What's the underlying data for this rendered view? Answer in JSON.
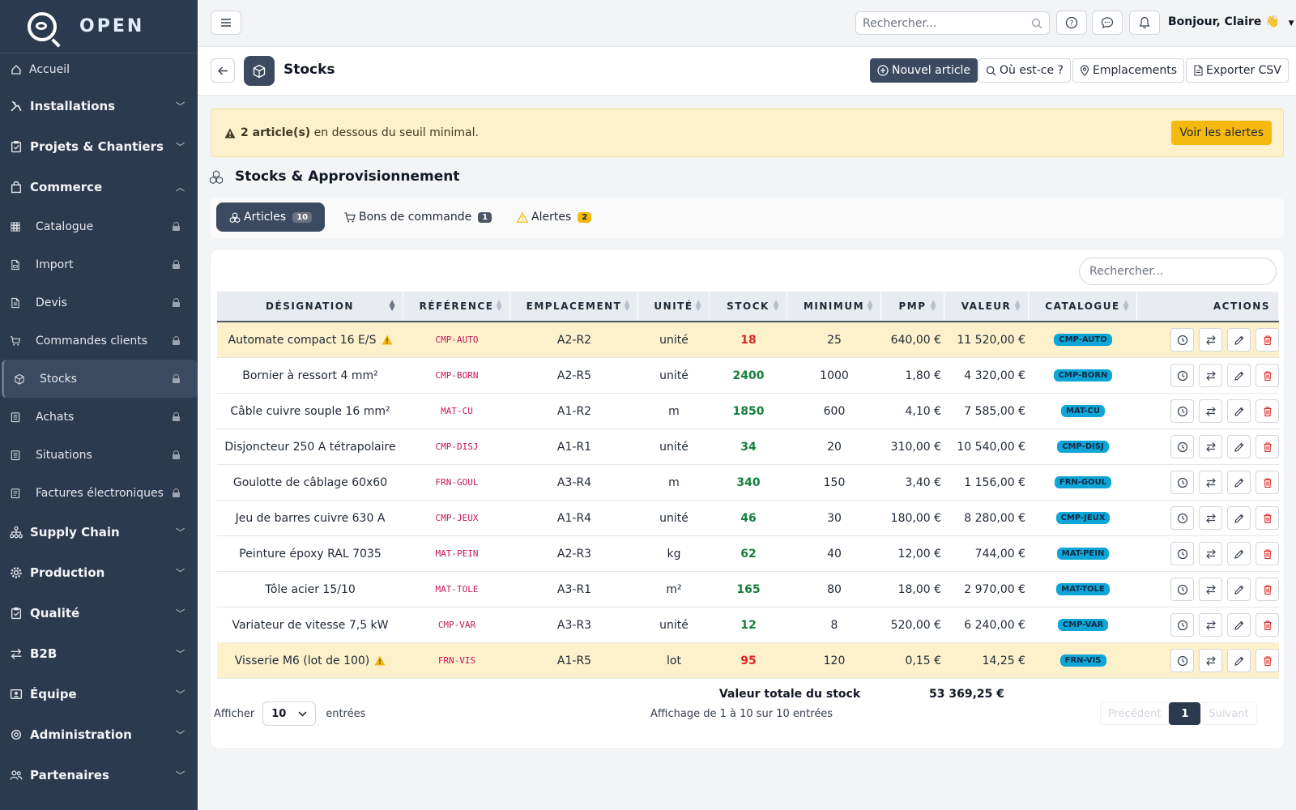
{
  "brand": {
    "name": "OPEN"
  },
  "sidebar": {
    "home": "Accueil",
    "groups_top": [
      {
        "label": "Installations",
        "icon": "tools-icon"
      },
      {
        "label": "Projets & Chantiers",
        "icon": "clipboard-icon"
      },
      {
        "label": "Commerce",
        "icon": "shopping-bag-icon",
        "expanded": true
      }
    ],
    "commerce_items": [
      {
        "label": "Catalogue",
        "icon": "grid-icon"
      },
      {
        "label": "Import",
        "icon": "file-icon"
      },
      {
        "label": "Devis",
        "icon": "file-text-icon"
      },
      {
        "label": "Commandes clients",
        "icon": "cart-icon"
      },
      {
        "label": "Stocks",
        "icon": "cube-icon",
        "active": true
      },
      {
        "label": "Achats",
        "icon": "receipt-icon"
      },
      {
        "label": "Situations",
        "icon": "receipt-icon"
      },
      {
        "label": "Factures électroniques",
        "icon": "invoice-icon"
      }
    ],
    "groups_bottom": [
      {
        "label": "Supply Chain",
        "icon": "network-icon"
      },
      {
        "label": "Production",
        "icon": "gear-icon"
      },
      {
        "label": "Qualité",
        "icon": "clipboard-check-icon"
      },
      {
        "label": "B2B",
        "icon": "arrows-icon"
      },
      {
        "label": "Équipe",
        "icon": "id-card-icon"
      },
      {
        "label": "Administration",
        "icon": "settings-icon"
      },
      {
        "label": "Partenaires",
        "icon": "users-icon"
      }
    ]
  },
  "topbar": {
    "search_placeholder": "Rechercher...",
    "greeting": "Bonjour, Claire 👋"
  },
  "header": {
    "title": "Stocks",
    "buttons": {
      "new": "Nouvel article",
      "where": "Où est-ce ?",
      "locations": "Emplacements",
      "export": "Exporter CSV"
    }
  },
  "alert": {
    "count_text": "2 article(s)",
    "rest_text": "en dessous du seuil minimal.",
    "button": "Voir les alertes"
  },
  "section": {
    "title": "Stocks & Approvisionnement"
  },
  "tabs": [
    {
      "label": "Articles",
      "count": "10"
    },
    {
      "label": "Bons de commande",
      "count": "1"
    },
    {
      "label": "Alertes",
      "count": "2"
    }
  ],
  "table": {
    "search_placeholder": "Rechercher...",
    "columns": [
      "DÉSIGNATION",
      "RÉFÉRENCE",
      "EMPLACEMENT",
      "UNITÉ",
      "STOCK",
      "MINIMUM",
      "PMP",
      "VALEUR",
      "CATALOGUE",
      "ACTIONS"
    ],
    "rows": [
      {
        "designation": "Automate compact 16 E/S",
        "ref": "CMP-AUTO",
        "emplacement": "A2-R2",
        "unite": "unité",
        "stock": "18",
        "minimum": "25",
        "pmp": "640,00 €",
        "valeur": "11 520,00 €",
        "catalogue": "CMP-AUTO",
        "low": true
      },
      {
        "designation": "Bornier à ressort 4 mm²",
        "ref": "CMP-BORN",
        "emplacement": "A2-R5",
        "unite": "unité",
        "stock": "2400",
        "minimum": "1000",
        "pmp": "1,80 €",
        "valeur": "4 320,00 €",
        "catalogue": "CMP-BORN",
        "low": false
      },
      {
        "designation": "Câble cuivre souple 16 mm²",
        "ref": "MAT-CU",
        "emplacement": "A1-R2",
        "unite": "m",
        "stock": "1850",
        "minimum": "600",
        "pmp": "4,10 €",
        "valeur": "7 585,00 €",
        "catalogue": "MAT-CU",
        "low": false
      },
      {
        "designation": "Disjoncteur 250 A tétrapolaire",
        "ref": "CMP-DISJ",
        "emplacement": "A1-R1",
        "unite": "unité",
        "stock": "34",
        "minimum": "20",
        "pmp": "310,00 €",
        "valeur": "10 540,00 €",
        "catalogue": "CMP-DISJ",
        "low": false
      },
      {
        "designation": "Goulotte de câblage 60x60",
        "ref": "FRN-GOUL",
        "emplacement": "A3-R4",
        "unite": "m",
        "stock": "340",
        "minimum": "150",
        "pmp": "3,40 €",
        "valeur": "1 156,00 €",
        "catalogue": "FRN-GOUL",
        "low": false
      },
      {
        "designation": "Jeu de barres cuivre 630 A",
        "ref": "CMP-JEUX",
        "emplacement": "A1-R4",
        "unite": "unité",
        "stock": "46",
        "minimum": "30",
        "pmp": "180,00 €",
        "valeur": "8 280,00 €",
        "catalogue": "CMP-JEUX",
        "low": false
      },
      {
        "designation": "Peinture époxy RAL 7035",
        "ref": "MAT-PEIN",
        "emplacement": "A2-R3",
        "unite": "kg",
        "stock": "62",
        "minimum": "40",
        "pmp": "12,00 €",
        "valeur": "744,00 €",
        "catalogue": "MAT-PEIN",
        "low": false
      },
      {
        "designation": "Tôle acier 15/10",
        "ref": "MAT-TOLE",
        "emplacement": "A3-R1",
        "unite": "m²",
        "stock": "165",
        "minimum": "80",
        "pmp": "18,00 €",
        "valeur": "2 970,00 €",
        "catalogue": "MAT-TOLE",
        "low": false
      },
      {
        "designation": "Variateur de vitesse 7,5 kW",
        "ref": "CMP-VAR",
        "emplacement": "A3-R3",
        "unite": "unité",
        "stock": "12",
        "minimum": "8",
        "pmp": "520,00 €",
        "valeur": "6 240,00 €",
        "catalogue": "CMP-VAR",
        "low": false
      },
      {
        "designation": "Visserie M6 (lot de 100)",
        "ref": "FRN-VIS",
        "emplacement": "A1-R5",
        "unite": "lot",
        "stock": "95",
        "minimum": "120",
        "pmp": "0,15 €",
        "valeur": "14,25 €",
        "catalogue": "FRN-VIS",
        "low": true
      }
    ],
    "total_label": "Valeur totale du stock",
    "total_value": "53 369,25 €"
  },
  "footer": {
    "show_label": "Afficher",
    "length": "10",
    "entries_label": "entrées",
    "info": "Affichage de 1 à 10 sur 10 entrées",
    "prev": "Précédent",
    "page": "1",
    "next": "Suivant"
  },
  "colors": {
    "sidebar_bg": "#2c3a4f",
    "accent": "#3b4a61",
    "warning": "#f5b80e",
    "stock_low": "#dc2626",
    "stock_ok": "#15803d",
    "catalogue_badge": "#0ea5d7"
  }
}
